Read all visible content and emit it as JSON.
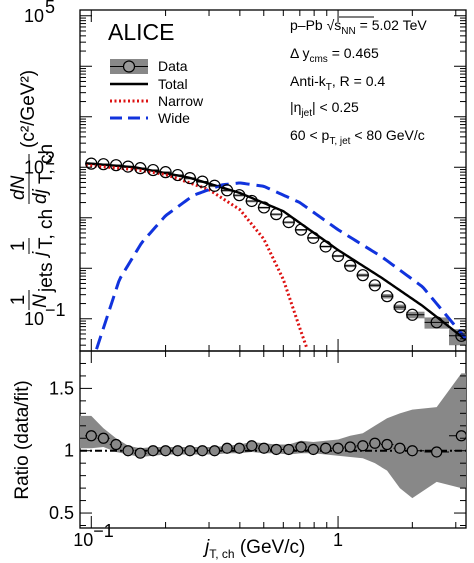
{
  "chart_data": [
    {
      "type": "line",
      "experiment": "ALICE",
      "xscale": "log",
      "yscale": "log",
      "xlim": [
        0.09,
        3.3
      ],
      "ylim": [
        0.023,
        130000
      ],
      "yticks": [
        {
          "v": 0.1,
          "b": "10",
          "e": "−1"
        },
        {
          "v": 100,
          "b": "10",
          "e": "2"
        },
        {
          "v": 100000,
          "b": "10",
          "e": "5"
        }
      ],
      "ylabel": {
        "prefix": "1",
        "n": "N",
        "n_sub": "jets",
        "one": "1",
        "j": "j",
        "j_sub": "T, ch",
        "dn": "dN",
        "dj": "dj",
        "units": "(c²/GeV²)"
      },
      "annotations": {
        "energy": "p–Pb √s",
        "energy_sub": "NN",
        "energy_val": " = 5.02 TeV",
        "rapidity": "Δ y",
        "rapidity_sub": "cms",
        "rapidity_val": " = 0.465",
        "algo": "Anti-k",
        "algo_sub": "T",
        "algo_val": ", R = 0.4",
        "eta": "|η",
        "eta_sub": "jet",
        "eta_val": "| < 0.25",
        "pt": "60 < p",
        "pt_sub": "T, jet",
        "pt_val": " < 80 GeV/c"
      },
      "legend": [
        "Data",
        "Total",
        "Narrow",
        "Wide"
      ],
      "legend_position": "top-left",
      "series": [
        {
          "name": "Data",
          "style": "open-circles-with-gray-error-boxes",
          "x": [
            0.1,
            0.112,
            0.126,
            0.141,
            0.158,
            0.178,
            0.2,
            0.224,
            0.251,
            0.282,
            0.316,
            0.355,
            0.398,
            0.447,
            0.501,
            0.562,
            0.631,
            0.708,
            0.794,
            0.891,
            1.0,
            1.12,
            1.26,
            1.41,
            1.58,
            1.78,
            2.0,
            2.51,
            3.16
          ],
          "y": [
            118,
            115,
            110,
            103,
            96,
            88,
            80,
            70,
            61,
            52,
            43,
            35,
            28,
            21.5,
            16,
            11.8,
            8.2,
            5.8,
            4.0,
            2.7,
            1.75,
            1.12,
            0.73,
            0.46,
            0.28,
            0.17,
            0.12,
            0.085,
            0.046
          ],
          "yerr_rel": [
            0.04,
            0.03,
            0.03,
            0.03,
            0.03,
            0.03,
            0.03,
            0.03,
            0.03,
            0.03,
            0.03,
            0.03,
            0.03,
            0.03,
            0.03,
            0.03,
            0.03,
            0.03,
            0.04,
            0.04,
            0.05,
            0.06,
            0.07,
            0.08,
            0.1,
            0.12,
            0.15,
            0.25,
            0.35
          ]
        },
        {
          "name": "Total",
          "color": "#000000",
          "dash": "solid",
          "x": [
            0.095,
            0.15,
            0.25,
            0.4,
            0.6,
            1.0,
            1.5,
            2.2,
            3.3
          ],
          "y": [
            120,
            100,
            62,
            31,
            13.5,
            2.3,
            0.65,
            0.18,
            0.038
          ]
        },
        {
          "name": "Narrow",
          "color": "#dd1111",
          "dash": "dotted",
          "x": [
            0.095,
            0.15,
            0.2,
            0.3,
            0.4,
            0.5,
            0.6,
            0.7,
            0.75
          ],
          "y": [
            110,
            90,
            72,
            36,
            14.5,
            3.8,
            0.6,
            0.065,
            0.025
          ]
        },
        {
          "name": "Wide",
          "color": "#1133dd",
          "dash": "dashed",
          "x": [
            0.105,
            0.13,
            0.16,
            0.2,
            0.26,
            0.34,
            0.4,
            0.5,
            0.7,
            1.0,
            1.5,
            2.2,
            3.3
          ],
          "y": [
            0.025,
            0.6,
            3.2,
            11,
            28,
            45,
            49,
            42,
            20,
            5.8,
            1.7,
            0.43,
            0.04
          ]
        }
      ]
    },
    {
      "type": "line",
      "xscale": "log",
      "xlim": [
        0.09,
        3.3
      ],
      "ylim": [
        0.38,
        1.8
      ],
      "xticks": [
        {
          "v": 0.1,
          "b": "10",
          "e": "−1"
        },
        {
          "v": 1,
          "b": "1",
          "e": ""
        }
      ],
      "yticks": [
        "0.5",
        "1",
        "1.5"
      ],
      "ylabel": "Ratio (data/fit)",
      "xlabel": {
        "j": "j",
        "sub": "T, ch",
        "units": " (GeV/c)"
      },
      "reference_line": 1,
      "series": [
        {
          "name": "ratio",
          "x": [
            0.1,
            0.112,
            0.126,
            0.141,
            0.158,
            0.178,
            0.2,
            0.224,
            0.251,
            0.282,
            0.316,
            0.355,
            0.398,
            0.447,
            0.501,
            0.562,
            0.631,
            0.708,
            0.794,
            0.891,
            1.0,
            1.12,
            1.26,
            1.41,
            1.58,
            1.78,
            2.0,
            2.51,
            3.16
          ],
          "y": [
            1.12,
            1.1,
            1.05,
            1.0,
            0.98,
            1.0,
            1.0,
            1.0,
            1.0,
            1.0,
            1.0,
            1.02,
            1.02,
            1.04,
            1.02,
            1.01,
            1.01,
            1.03,
            1.01,
            1.02,
            1.02,
            1.03,
            1.04,
            1.06,
            1.05,
            1.02,
            1.0,
            0.99,
            1.12
          ],
          "band_low": [
            1.02,
            1.03,
            0.99,
            0.97,
            0.95,
            0.96,
            0.97,
            0.97,
            0.97,
            0.97,
            0.97,
            0.98,
            0.98,
            0.99,
            0.98,
            0.98,
            0.97,
            0.98,
            0.98,
            0.97,
            0.96,
            0.95,
            0.94,
            0.9,
            0.84,
            0.7,
            0.62,
            0.75,
            0.7
          ],
          "band_high": [
            1.28,
            1.18,
            1.1,
            1.04,
            1.02,
            1.03,
            1.03,
            1.03,
            1.03,
            1.03,
            1.03,
            1.04,
            1.05,
            1.07,
            1.06,
            1.05,
            1.05,
            1.08,
            1.07,
            1.08,
            1.09,
            1.12,
            1.14,
            1.2,
            1.26,
            1.3,
            1.33,
            1.35,
            1.62
          ]
        }
      ]
    }
  ]
}
